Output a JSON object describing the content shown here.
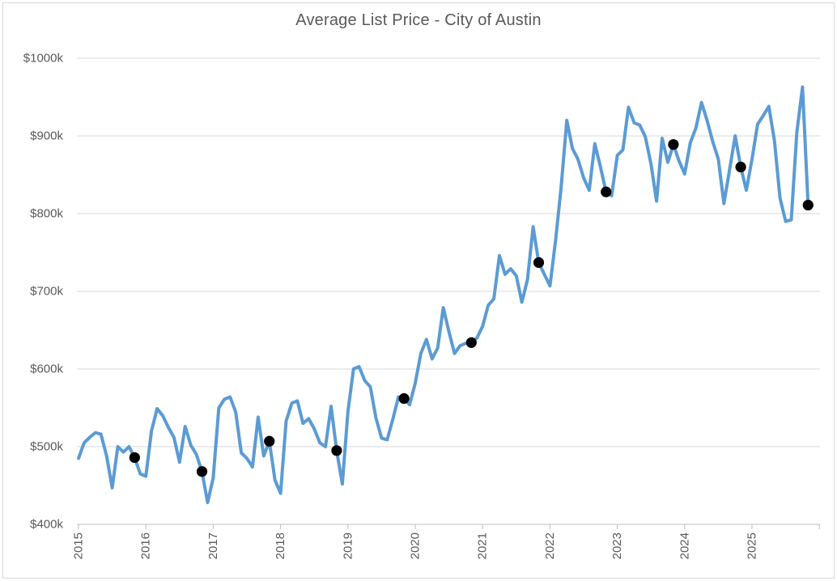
{
  "chart_data": {
    "type": "line",
    "title": "Average List Price - City of Austin",
    "value_unit": "thousand USD",
    "grid": "horizontal",
    "legend": "none",
    "y_axis": {
      "min": 400,
      "max": 1000,
      "tick_values": [
        400,
        500,
        600,
        700,
        800,
        900,
        1000
      ],
      "tick_labels": [
        "$400k",
        "$500k",
        "$600k",
        "$700k",
        "$800k",
        "$900k",
        "$1000k"
      ]
    },
    "x_axis": {
      "interval": "month",
      "start_month": "2015-01",
      "end_month": "2025-11",
      "tick_labels": [
        "2015",
        "2016",
        "2017",
        "2018",
        "2019",
        "2020",
        "2021",
        "2022",
        "2023",
        "2024",
        "2025"
      ],
      "trailing_unlabeled_tick": true,
      "label_rotation_degrees": -90
    },
    "series": [
      {
        "name": "Average List Price",
        "color": "#5b9bd5",
        "monthly_values": [
          485,
          505,
          512,
          518,
          516,
          488,
          447,
          500,
          493,
          500,
          486,
          465,
          462,
          520,
          549,
          540,
          525,
          512,
          480,
          526,
          502,
          490,
          468,
          428,
          460,
          550,
          561,
          564,
          545,
          492,
          485,
          474,
          538,
          488,
          507,
          457,
          440,
          533,
          556,
          559,
          530,
          536,
          523,
          505,
          500,
          552,
          495,
          452,
          545,
          600,
          603,
          585,
          577,
          537,
          511,
          509,
          535,
          564,
          562,
          554,
          582,
          620,
          638,
          613,
          627,
          679,
          648,
          620,
          630,
          633,
          634,
          640,
          655,
          682,
          690,
          746,
          722,
          729,
          720,
          686,
          715,
          783,
          737,
          722,
          707,
          765,
          834,
          920,
          884,
          870,
          846,
          830,
          890,
          860,
          828,
          823,
          875,
          882,
          937,
          917,
          914,
          899,
          864,
          816,
          897,
          866,
          889,
          868,
          851,
          891,
          910,
          943,
          920,
          893,
          870,
          813,
          856,
          900,
          860,
          830,
          870,
          915,
          926,
          938,
          894,
          820,
          790,
          792,
          905,
          963,
          811
        ]
      }
    ],
    "markers": {
      "name": "November values",
      "color": "#000000",
      "points": [
        {
          "month": "2015-11",
          "value": 486
        },
        {
          "month": "2016-11",
          "value": 468
        },
        {
          "month": "2017-11",
          "value": 507
        },
        {
          "month": "2018-11",
          "value": 495
        },
        {
          "month": "2019-11",
          "value": 562
        },
        {
          "month": "2020-11",
          "value": 634
        },
        {
          "month": "2021-11",
          "value": 737
        },
        {
          "month": "2022-11",
          "value": 828
        },
        {
          "month": "2023-11",
          "value": 889
        },
        {
          "month": "2024-11",
          "value": 860
        },
        {
          "month": "2025-11",
          "value": 811
        }
      ]
    }
  },
  "style": {
    "background": "#ffffff",
    "border_color": "#d9d9d9",
    "grid_color": "#d9d9d9",
    "axis_color": "#bfbfbf",
    "text_color": "#595959",
    "line_color": "#5b9bd5",
    "marker_color": "#000000"
  }
}
